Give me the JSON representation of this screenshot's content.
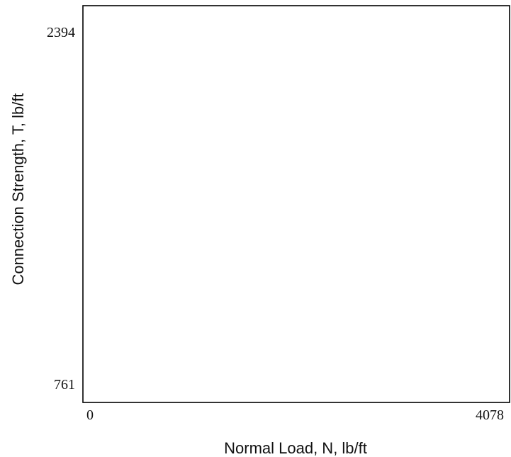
{
  "chart_data": {
    "type": "scatter",
    "xlabel": "Normal Load, N, lb/ft",
    "ylabel": "Connection Strength, T, lb/ft",
    "xlim": [
      0,
      4078
    ],
    "ylim": [
      761,
      2394
    ],
    "x_ticks": [
      "0",
      "4078"
    ],
    "y_ticks": [
      "761",
      "2394"
    ],
    "series": [],
    "grid": false
  }
}
